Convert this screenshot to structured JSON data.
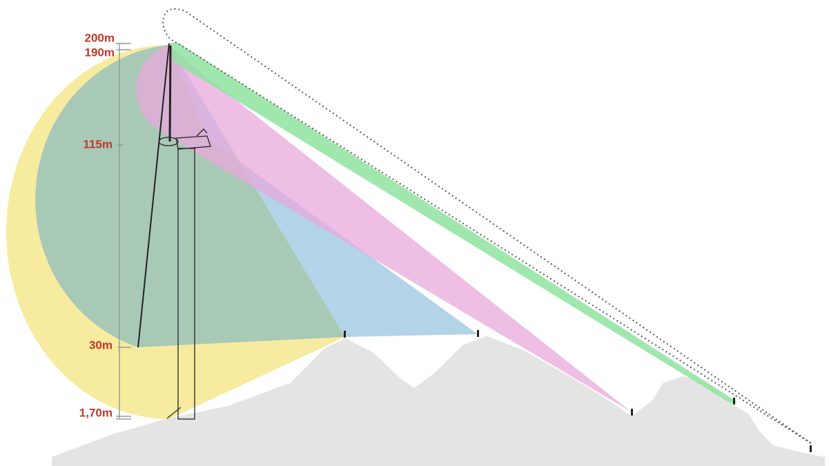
{
  "height_labels": [
    "200m",
    "190m",
    "115m",
    "30m",
    "1,70m"
  ]
}
